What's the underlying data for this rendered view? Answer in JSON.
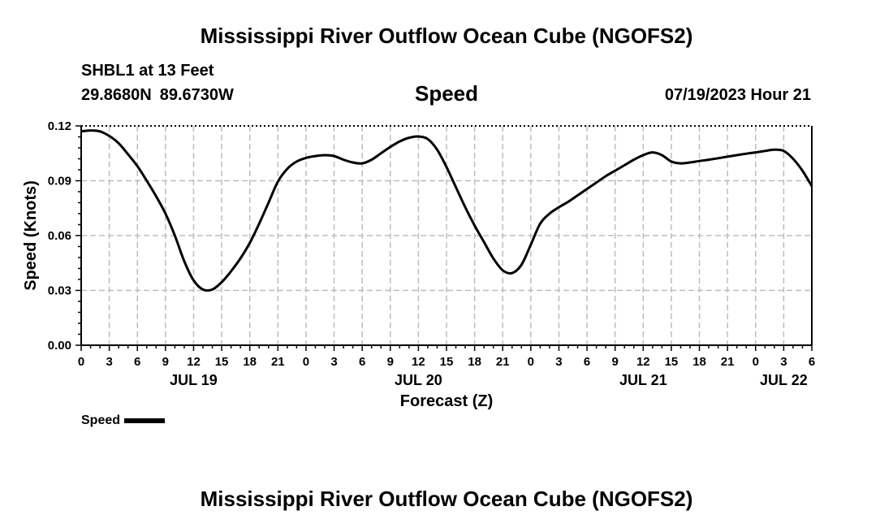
{
  "header": {
    "title": "Mississippi River Outflow Ocean Cube (NGOFS2)",
    "station": "SHBL1 at 13 Feet",
    "latitude": "29.8680N",
    "longitude": "89.6730W",
    "subtitle": "Speed",
    "datetime": "07/19/2023 Hour 21"
  },
  "footer": {
    "title": "Mississippi River Outflow Ocean Cube (NGOFS2)"
  },
  "legend": {
    "label": "Speed",
    "color": "#000000"
  },
  "chart_data": {
    "type": "line",
    "title": "Speed",
    "xlabel": "Forecast (Z)",
    "ylabel": "Speed (Knots)",
    "xlim": [
      0,
      78
    ],
    "ylim": [
      0.0,
      0.12
    ],
    "grid": true,
    "y_ticks": [
      0.0,
      0.03,
      0.06,
      0.09,
      0.12
    ],
    "y_tick_labels": [
      "0.00",
      "0.03",
      "0.06",
      "0.09",
      "0.12"
    ],
    "x_ticks": [
      0,
      3,
      6,
      9,
      12,
      15,
      18,
      21,
      24,
      27,
      30,
      33,
      36,
      39,
      42,
      45,
      48,
      51,
      54,
      57,
      60,
      63,
      66,
      69,
      72,
      75,
      78
    ],
    "x_tick_labels": [
      "0",
      "3",
      "6",
      "9",
      "12",
      "15",
      "18",
      "21",
      "0",
      "3",
      "6",
      "9",
      "12",
      "15",
      "18",
      "21",
      "0",
      "3",
      "6",
      "9",
      "12",
      "15",
      "18",
      "21",
      "0",
      "3",
      "6"
    ],
    "date_labels": [
      {
        "label": "JUL 19",
        "at": 12
      },
      {
        "label": "JUL 20",
        "at": 36
      },
      {
        "label": "JUL 21",
        "at": 60
      },
      {
        "label": "JUL 22",
        "at": 75
      }
    ],
    "series": [
      {
        "name": "Speed",
        "x": [
          0,
          1,
          2,
          3,
          4,
          5,
          6,
          7,
          8,
          9,
          10,
          11,
          12,
          13,
          14,
          15,
          16,
          17,
          18,
          19,
          20,
          21,
          22,
          23,
          24,
          25,
          26,
          27,
          28,
          29,
          30,
          31,
          32,
          33,
          34,
          35,
          36,
          37,
          38,
          39,
          40,
          41,
          42,
          43,
          44,
          45,
          46,
          47,
          48,
          49,
          50,
          51,
          52,
          53,
          54,
          55,
          56,
          57,
          58,
          59,
          60,
          61,
          62,
          63,
          64,
          65,
          66,
          67,
          68,
          69,
          70,
          71,
          72,
          73,
          74,
          75,
          76,
          77,
          78
        ],
        "values": [
          0.117,
          0.1175,
          0.117,
          0.1145,
          0.1105,
          0.1045,
          0.098,
          0.09,
          0.0815,
          0.072,
          0.06,
          0.046,
          0.0355,
          0.0305,
          0.0305,
          0.0345,
          0.0405,
          0.0475,
          0.056,
          0.0665,
          0.078,
          0.0895,
          0.0965,
          0.1005,
          0.1025,
          0.1035,
          0.104,
          0.1035,
          0.1015,
          0.1,
          0.0995,
          0.1015,
          0.105,
          0.1085,
          0.1115,
          0.1135,
          0.1142,
          0.1128,
          0.107,
          0.0975,
          0.0865,
          0.0755,
          0.0655,
          0.0565,
          0.0475,
          0.041,
          0.0395,
          0.044,
          0.055,
          0.0665,
          0.072,
          0.0755,
          0.0785,
          0.082,
          0.0855,
          0.089,
          0.0925,
          0.0955,
          0.0985,
          0.1015,
          0.104,
          0.1055,
          0.104,
          0.1005,
          0.0995,
          0.1,
          0.1008,
          0.1015,
          0.1023,
          0.1032,
          0.104,
          0.1048,
          0.1055,
          0.1063,
          0.107,
          0.1063,
          0.102,
          0.0955,
          0.087
        ]
      }
    ]
  }
}
